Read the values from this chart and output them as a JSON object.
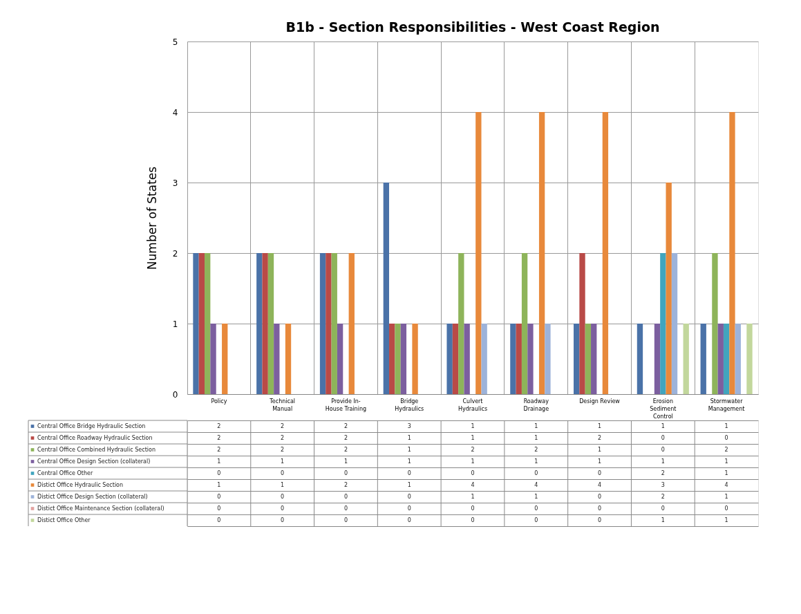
{
  "chart_data": {
    "type": "bar",
    "title": "B1b - Section Responsibilities - West Coast Region",
    "ylabel": "Number of States",
    "categories": [
      "Policy",
      "Technical\nManual",
      "Provide In-\nHouse Training",
      "Bridge\nHydraulics",
      "Culvert\nHydraulics",
      "Roadway\nDrainage",
      "Design Review",
      "Erosion\nSediment\nControl",
      "Stormwater\nManagement"
    ],
    "series": [
      {
        "name": "Central Office Bridge Hydraulic Section",
        "color": "#4a72a8",
        "values": [
          2,
          2,
          2,
          3,
          1,
          1,
          1,
          1,
          1
        ]
      },
      {
        "name": "Central Office Roadway Hydraulic Section",
        "color": "#b94a47",
        "values": [
          2,
          2,
          2,
          1,
          1,
          1,
          2,
          0,
          0
        ]
      },
      {
        "name": "Central Office Combined Hydraulic Section",
        "color": "#8eb45a",
        "values": [
          2,
          2,
          2,
          1,
          2,
          2,
          1,
          0,
          2
        ]
      },
      {
        "name": "Central Office Design Section (collateral)",
        "color": "#7c5f9f",
        "values": [
          1,
          1,
          1,
          1,
          1,
          1,
          1,
          1,
          1
        ]
      },
      {
        "name": "Central Office Other",
        "color": "#41a5be",
        "values": [
          0,
          0,
          0,
          0,
          0,
          0,
          0,
          2,
          1
        ]
      },
      {
        "name": "Distict Office Hydraulic Section",
        "color": "#e8893b",
        "values": [
          1,
          1,
          2,
          1,
          4,
          4,
          4,
          3,
          4
        ]
      },
      {
        "name": "Distict Office Design Section (collateral)",
        "color": "#9db3da",
        "values": [
          0,
          0,
          0,
          0,
          1,
          1,
          0,
          2,
          1
        ]
      },
      {
        "name": "Distict Office Maintenance Section (collateral)",
        "color": "#e3a3a1",
        "values": [
          0,
          0,
          0,
          0,
          0,
          0,
          0,
          0,
          0
        ]
      },
      {
        "name": "Distict Office Other",
        "color": "#c2d79c",
        "values": [
          0,
          0,
          0,
          0,
          0,
          0,
          0,
          1,
          1
        ]
      }
    ],
    "ylim": [
      0,
      5
    ],
    "yticks": [
      0,
      1,
      2,
      3,
      4,
      5
    ],
    "grid": true,
    "legend": "bottom",
    "data_labels": true
  }
}
